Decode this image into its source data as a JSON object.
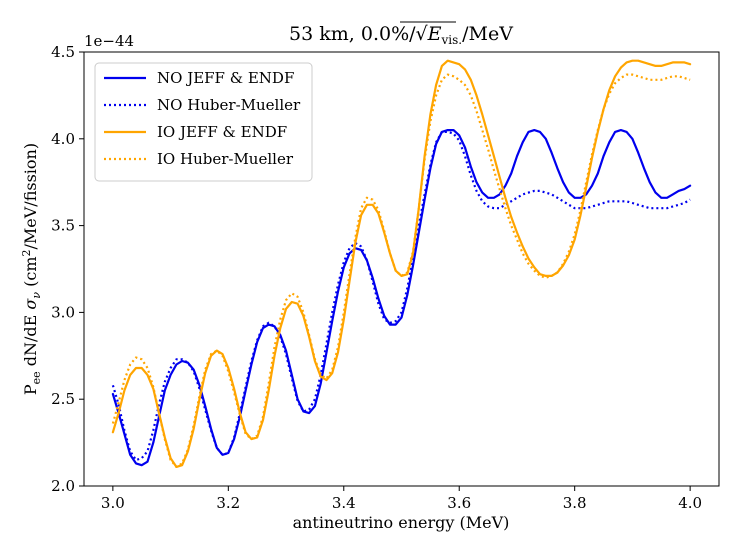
{
  "chart_data": {
    "type": "line",
    "title_prefix": "53 km, 0.0%/",
    "title_radical": "√",
    "title_var": "E",
    "title_sub": "vis.",
    "title_suffix": "/MeV",
    "xlabel": "antineutrino energy (MeV)",
    "ylabel_p": "P",
    "ylabel_ee": "ee",
    "ylabel_mid": " dN/dE ",
    "ylabel_sigma": "σ",
    "ylabel_nu": "ν",
    "ylabel_units_a": " (cm",
    "ylabel_sup": "2",
    "ylabel_units_b": "/MeV/fission)",
    "y_offset_text": "1e−44",
    "xlim": [
      2.95,
      4.05
    ],
    "ylim": [
      2.0,
      4.5
    ],
    "xticks": [
      "3.0",
      "3.2",
      "3.4",
      "3.6",
      "3.8",
      "4.0"
    ],
    "yticks": [
      "2.0",
      "2.5",
      "3.0",
      "3.5",
      "4.0",
      "4.5"
    ],
    "legend_position": "upper-left",
    "x": [
      3.0,
      3.01,
      3.02,
      3.03,
      3.04,
      3.05,
      3.06,
      3.07,
      3.08,
      3.09,
      3.1,
      3.11,
      3.12,
      3.13,
      3.14,
      3.15,
      3.16,
      3.17,
      3.18,
      3.19,
      3.2,
      3.21,
      3.22,
      3.23,
      3.24,
      3.25,
      3.26,
      3.27,
      3.28,
      3.29,
      3.3,
      3.31,
      3.32,
      3.33,
      3.34,
      3.35,
      3.36,
      3.37,
      3.38,
      3.39,
      3.4,
      3.41,
      3.42,
      3.43,
      3.44,
      3.45,
      3.46,
      3.47,
      3.48,
      3.49,
      3.5,
      3.51,
      3.52,
      3.53,
      3.54,
      3.55,
      3.56,
      3.57,
      3.58,
      3.59,
      3.6,
      3.61,
      3.62,
      3.63,
      3.64,
      3.65,
      3.66,
      3.67,
      3.68,
      3.69,
      3.7,
      3.71,
      3.72,
      3.73,
      3.74,
      3.75,
      3.76,
      3.77,
      3.78,
      3.79,
      3.8,
      3.81,
      3.82,
      3.83,
      3.84,
      3.85,
      3.86,
      3.87,
      3.88,
      3.89,
      3.9,
      3.91,
      3.92,
      3.93,
      3.94,
      3.95,
      3.96,
      3.97,
      3.98,
      3.99,
      4.0
    ],
    "series": [
      {
        "name": "NO JEFF & ENDF",
        "color": "#0000ee",
        "dash": "solid",
        "values": [
          2.53,
          2.42,
          2.3,
          2.18,
          2.13,
          2.12,
          2.14,
          2.25,
          2.4,
          2.55,
          2.64,
          2.7,
          2.72,
          2.71,
          2.67,
          2.58,
          2.46,
          2.33,
          2.22,
          2.18,
          2.19,
          2.27,
          2.4,
          2.55,
          2.7,
          2.83,
          2.91,
          2.93,
          2.92,
          2.87,
          2.78,
          2.64,
          2.5,
          2.43,
          2.42,
          2.46,
          2.59,
          2.77,
          2.95,
          3.12,
          3.26,
          3.34,
          3.37,
          3.36,
          3.3,
          3.2,
          3.08,
          2.98,
          2.93,
          2.93,
          2.97,
          3.1,
          3.27,
          3.46,
          3.65,
          3.83,
          3.97,
          4.04,
          4.05,
          4.05,
          4.02,
          3.95,
          3.84,
          3.75,
          3.69,
          3.66,
          3.66,
          3.68,
          3.73,
          3.8,
          3.9,
          3.98,
          4.04,
          4.05,
          4.04,
          4.0,
          3.92,
          3.83,
          3.75,
          3.69,
          3.66,
          3.66,
          3.68,
          3.73,
          3.8,
          3.9,
          3.98,
          4.04,
          4.05,
          4.04,
          4.0,
          3.92,
          3.83,
          3.75,
          3.69,
          3.66,
          3.66,
          3.68,
          3.7,
          3.71,
          3.73
        ]
      },
      {
        "name": "NO Huber-Mueller",
        "color": "#0000ee",
        "dash": "dotted",
        "values": [
          2.58,
          2.47,
          2.32,
          2.2,
          2.15,
          2.16,
          2.2,
          2.32,
          2.47,
          2.6,
          2.68,
          2.73,
          2.73,
          2.71,
          2.66,
          2.56,
          2.44,
          2.32,
          2.22,
          2.18,
          2.19,
          2.28,
          2.42,
          2.57,
          2.72,
          2.84,
          2.92,
          2.94,
          2.92,
          2.86,
          2.76,
          2.62,
          2.49,
          2.43,
          2.44,
          2.5,
          2.64,
          2.82,
          3.0,
          3.16,
          3.29,
          3.37,
          3.4,
          3.38,
          3.3,
          3.18,
          3.05,
          2.96,
          2.94,
          2.95,
          3.0,
          3.14,
          3.31,
          3.5,
          3.68,
          3.85,
          3.98,
          4.04,
          4.04,
          4.03,
          3.99,
          3.9,
          3.79,
          3.7,
          3.64,
          3.61,
          3.6,
          3.6,
          3.62,
          3.64,
          3.66,
          3.68,
          3.69,
          3.7,
          3.7,
          3.69,
          3.68,
          3.66,
          3.64,
          3.62,
          3.6,
          3.6,
          3.6,
          3.61,
          3.62,
          3.63,
          3.64,
          3.64,
          3.64,
          3.64,
          3.63,
          3.62,
          3.61,
          3.6,
          3.6,
          3.6,
          3.6,
          3.61,
          3.62,
          3.63,
          3.65
        ]
      },
      {
        "name": "IO JEFF & ENDF",
        "color": "#ffa500",
        "dash": "solid",
        "values": [
          2.31,
          2.42,
          2.55,
          2.64,
          2.68,
          2.68,
          2.64,
          2.56,
          2.42,
          2.28,
          2.16,
          2.11,
          2.12,
          2.2,
          2.33,
          2.5,
          2.65,
          2.75,
          2.78,
          2.76,
          2.68,
          2.56,
          2.42,
          2.31,
          2.27,
          2.28,
          2.38,
          2.55,
          2.75,
          2.91,
          3.02,
          3.06,
          3.05,
          2.98,
          2.86,
          2.72,
          2.63,
          2.61,
          2.65,
          2.77,
          2.96,
          3.18,
          3.4,
          3.56,
          3.62,
          3.62,
          3.57,
          3.46,
          3.34,
          3.24,
          3.21,
          3.22,
          3.34,
          3.6,
          3.9,
          4.14,
          4.31,
          4.42,
          4.45,
          4.44,
          4.43,
          4.4,
          4.34,
          4.25,
          4.14,
          4.02,
          3.9,
          3.78,
          3.66,
          3.55,
          3.46,
          3.38,
          3.31,
          3.26,
          3.22,
          3.21,
          3.21,
          3.23,
          3.27,
          3.33,
          3.42,
          3.56,
          3.72,
          3.89,
          4.04,
          4.17,
          4.28,
          4.36,
          4.41,
          4.44,
          4.45,
          4.45,
          4.44,
          4.43,
          4.42,
          4.42,
          4.43,
          4.44,
          4.44,
          4.44,
          4.43
        ]
      },
      {
        "name": "IO Huber-Mueller",
        "color": "#ffa500",
        "dash": "dotted",
        "values": [
          2.36,
          2.48,
          2.61,
          2.7,
          2.74,
          2.73,
          2.68,
          2.57,
          2.42,
          2.27,
          2.15,
          2.11,
          2.13,
          2.21,
          2.35,
          2.52,
          2.67,
          2.76,
          2.78,
          2.75,
          2.66,
          2.54,
          2.41,
          2.3,
          2.27,
          2.29,
          2.4,
          2.59,
          2.8,
          2.96,
          3.07,
          3.11,
          3.09,
          3.0,
          2.87,
          2.73,
          2.64,
          2.62,
          2.67,
          2.8,
          3.0,
          3.22,
          3.43,
          3.6,
          3.66,
          3.65,
          3.59,
          3.47,
          3.34,
          3.24,
          3.21,
          3.23,
          3.35,
          3.6,
          3.88,
          4.1,
          4.25,
          4.34,
          4.37,
          4.36,
          4.34,
          4.31,
          4.25,
          4.16,
          4.05,
          3.94,
          3.82,
          3.71,
          3.6,
          3.5,
          3.42,
          3.34,
          3.28,
          3.24,
          3.21,
          3.2,
          3.21,
          3.23,
          3.28,
          3.35,
          3.45,
          3.59,
          3.75,
          3.91,
          4.05,
          4.17,
          4.26,
          4.32,
          4.35,
          4.37,
          4.37,
          4.36,
          4.35,
          4.34,
          4.34,
          4.34,
          4.35,
          4.36,
          4.36,
          4.35,
          4.34
        ]
      }
    ]
  }
}
